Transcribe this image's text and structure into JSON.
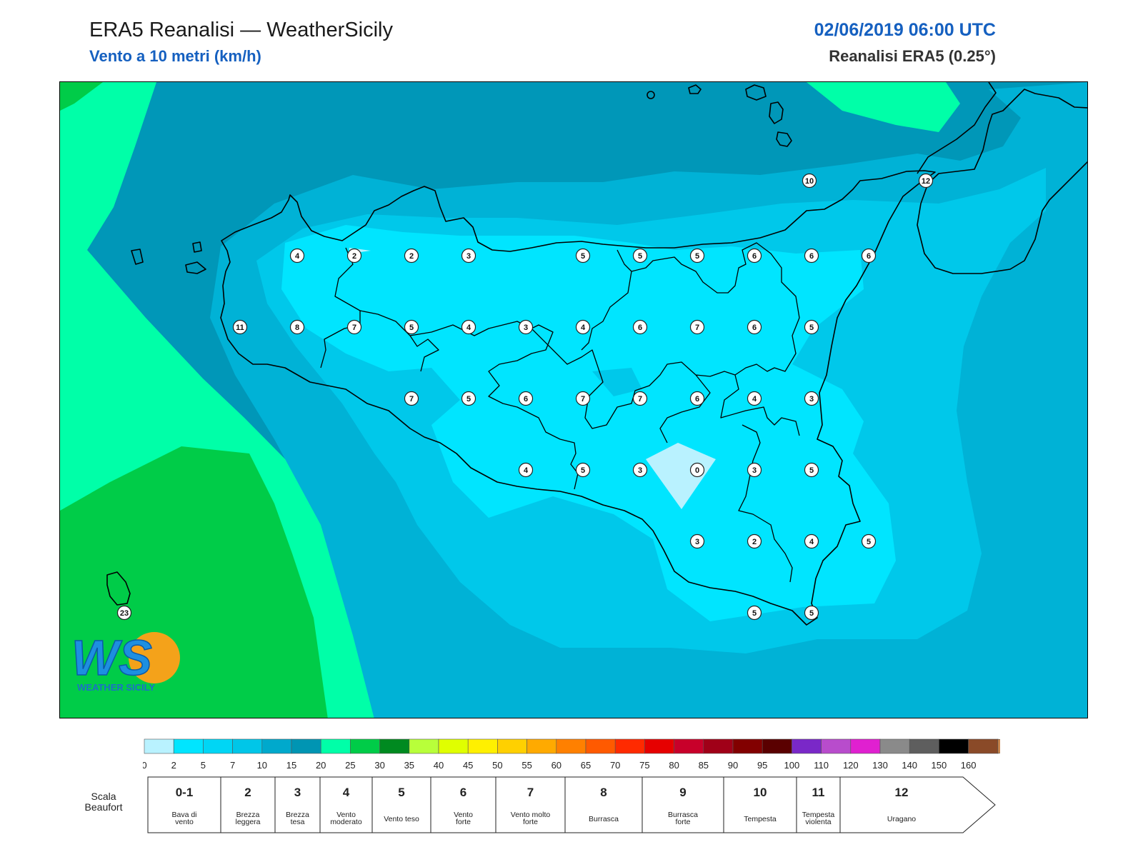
{
  "header": {
    "title": "ERA5 Reanalisi — WeatherSicily",
    "subtitle": "Vento a 10 metri (km/h)",
    "datetime": "02/06/2019 06:00 UTC",
    "model": "Reanalisi ERA5 (0.25°)"
  },
  "stations": [
    {
      "v": "4",
      "c": 0,
      "r": 0
    },
    {
      "v": "2",
      "c": 1,
      "r": 0
    },
    {
      "v": "2",
      "c": 2,
      "r": 0
    },
    {
      "v": "3",
      "c": 3,
      "r": 0
    },
    {
      "v": "5",
      "c": 5,
      "r": 0
    },
    {
      "v": "5",
      "c": 6,
      "r": 0
    },
    {
      "v": "5",
      "c": 7,
      "r": 0
    },
    {
      "v": "6",
      "c": 8,
      "r": 0
    },
    {
      "v": "6",
      "c": 9,
      "r": 0
    },
    {
      "v": "6",
      "c": 10,
      "r": 0
    },
    {
      "v": "11",
      "c": -1,
      "r": 1
    },
    {
      "v": "8",
      "c": 0,
      "r": 1
    },
    {
      "v": "7",
      "c": 1,
      "r": 1
    },
    {
      "v": "5",
      "c": 2,
      "r": 1
    },
    {
      "v": "4",
      "c": 3,
      "r": 1
    },
    {
      "v": "3",
      "c": 4,
      "r": 1
    },
    {
      "v": "4",
      "c": 5,
      "r": 1
    },
    {
      "v": "6",
      "c": 6,
      "r": 1
    },
    {
      "v": "7",
      "c": 7,
      "r": 1
    },
    {
      "v": "6",
      "c": 8,
      "r": 1
    },
    {
      "v": "5",
      "c": 9,
      "r": 1
    },
    {
      "v": "7",
      "c": 2,
      "r": 2
    },
    {
      "v": "5",
      "c": 3,
      "r": 2
    },
    {
      "v": "6",
      "c": 4,
      "r": 2
    },
    {
      "v": "7",
      "c": 5,
      "r": 2
    },
    {
      "v": "7",
      "c": 6,
      "r": 2
    },
    {
      "v": "6",
      "c": 7,
      "r": 2
    },
    {
      "v": "4",
      "c": 8,
      "r": 2
    },
    {
      "v": "3",
      "c": 9,
      "r": 2
    },
    {
      "v": "4",
      "c": 4,
      "r": 3
    },
    {
      "v": "5",
      "c": 5,
      "r": 3
    },
    {
      "v": "3",
      "c": 6,
      "r": 3
    },
    {
      "v": "0",
      "c": 7,
      "r": 3
    },
    {
      "v": "3",
      "c": 8,
      "r": 3
    },
    {
      "v": "5",
      "c": 9,
      "r": 3
    },
    {
      "v": "3",
      "c": 7,
      "r": 4
    },
    {
      "v": "2",
      "c": 8,
      "r": 4
    },
    {
      "v": "4",
      "c": 9,
      "r": 4
    },
    {
      "v": "5",
      "c": 10,
      "r": 4
    },
    {
      "v": "5",
      "c": 8,
      "r": 5
    },
    {
      "v": "5",
      "c": 9,
      "r": 5
    },
    {
      "v": "10",
      "c": 10,
      "r": -1
    },
    {
      "v": "12",
      "c": 11,
      "r": -1
    },
    {
      "v": "23",
      "c": -3,
      "r": 5
    }
  ],
  "colorbar": {
    "ticks": [
      "0",
      "2",
      "5",
      "7",
      "10",
      "15",
      "20",
      "25",
      "30",
      "35",
      "40",
      "45",
      "50",
      "55",
      "60",
      "65",
      "70",
      "75",
      "80",
      "85",
      "90",
      "95",
      "100",
      "110",
      "120",
      "130",
      "140",
      "150",
      "160"
    ],
    "colors": [
      "#b9f2ff",
      "#00e5ff",
      "#00d6f5",
      "#00c6e8",
      "#00a9cc",
      "#0095b3",
      "#00ffa8",
      "#00cc48",
      "#008a20",
      "#b8ff3a",
      "#e0ff00",
      "#fff000",
      "#ffd000",
      "#ffaa00",
      "#ff8000",
      "#ff5a00",
      "#ff2a00",
      "#e60000",
      "#c8002a",
      "#a00018",
      "#820000",
      "#5a0000",
      "#7a28c8",
      "#b84ccc",
      "#e020d0",
      "#8a8a8a",
      "#5e5e5e",
      "#000000",
      "#8a4a28",
      "#c8844a"
    ]
  },
  "beaufort": {
    "label": "Scala Beaufort",
    "classes": [
      {
        "num": "0-1",
        "desc1": "Bava di",
        "desc2": "vento"
      },
      {
        "num": "2",
        "desc1": "Brezza",
        "desc2": "leggera"
      },
      {
        "num": "3",
        "desc1": "Brezza",
        "desc2": "tesa"
      },
      {
        "num": "4",
        "desc1": "Vento",
        "desc2": "moderato"
      },
      {
        "num": "5",
        "desc1": "Vento teso",
        "desc2": ""
      },
      {
        "num": "6",
        "desc1": "Vento",
        "desc2": "forte"
      },
      {
        "num": "7",
        "desc1": "Vento molto",
        "desc2": "forte"
      },
      {
        "num": "8",
        "desc1": "Burrasca",
        "desc2": ""
      },
      {
        "num": "9",
        "desc1": "Burrasca",
        "desc2": "forte"
      },
      {
        "num": "10",
        "desc1": "Tempesta",
        "desc2": ""
      },
      {
        "num": "11",
        "desc1": "Tempesta",
        "desc2": "violenta"
      },
      {
        "num": "12",
        "desc1": "Uragano",
        "desc2": ""
      }
    ]
  },
  "logo": {
    "letters": "WS",
    "text": "WEATHER SICILY"
  }
}
